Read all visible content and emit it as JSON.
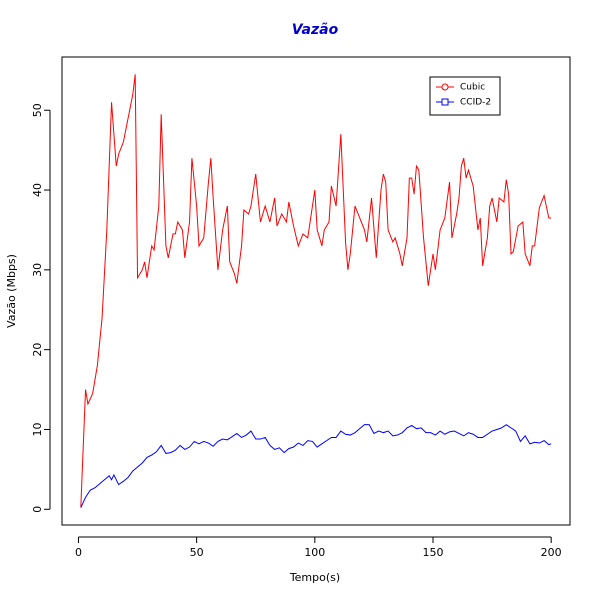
{
  "chart_data": {
    "type": "line",
    "title": "Vazão",
    "xlabel": "Tempo(s)",
    "ylabel": "Vazão (Mbps)",
    "xlim": [
      -6.96,
      207.96
    ],
    "ylim": [
      -1.97,
      56.67
    ],
    "xticks": [
      0,
      50,
      100,
      150,
      200
    ],
    "yticks": [
      0,
      10,
      20,
      30,
      40,
      50
    ],
    "grid": false,
    "legend": "top-right",
    "series": [
      {
        "name": "Cubic",
        "color": "#ff0000",
        "marker": "circle",
        "x": [
          1,
          3,
          4,
          6,
          8,
          10,
          12,
          14,
          16,
          17,
          19,
          21,
          23,
          24,
          25,
          27,
          28,
          29,
          31,
          32,
          34,
          35,
          37,
          38,
          40,
          41,
          42,
          44,
          45,
          47,
          48,
          50,
          51,
          53,
          55,
          56,
          57,
          59,
          61,
          63,
          64,
          66,
          67,
          69,
          70,
          72,
          73,
          75,
          77,
          79,
          81,
          83,
          84,
          86,
          88,
          89,
          91,
          93,
          95,
          97,
          98,
          100,
          101,
          103,
          104,
          106,
          107,
          109,
          111,
          113,
          114,
          115,
          117,
          119,
          121,
          122,
          124,
          126,
          128,
          129,
          130,
          131,
          133,
          134,
          136,
          137,
          139,
          140,
          141,
          142,
          143,
          144,
          146,
          148,
          150,
          151,
          153,
          155,
          157,
          158,
          160,
          161,
          162,
          163,
          164,
          165,
          167,
          169,
          170,
          171,
          173,
          174,
          175,
          177,
          178,
          180,
          181,
          182,
          183,
          184,
          186,
          188,
          189,
          191,
          192,
          193,
          195,
          197,
          199,
          200
        ],
        "values": [
          0.3,
          15,
          13.2,
          14.5,
          18,
          24,
          35,
          51,
          43,
          44.5,
          46,
          49,
          52,
          54.5,
          29,
          30,
          31,
          29,
          33,
          32.5,
          38,
          49.5,
          33,
          31.5,
          34.5,
          34.5,
          36,
          35,
          31.5,
          36,
          44,
          38,
          33,
          34,
          41,
          44,
          39,
          30,
          35,
          38,
          31,
          29.5,
          28.3,
          33,
          37.5,
          37,
          38,
          42,
          36,
          38,
          36,
          39,
          35.5,
          37,
          36,
          38.5,
          35.5,
          33,
          34.5,
          34,
          36,
          40,
          35,
          33,
          35,
          36,
          40.5,
          38,
          47,
          33.5,
          30,
          32,
          38,
          36.5,
          35,
          33.5,
          39,
          31.5,
          40,
          42,
          41,
          35,
          33.5,
          34,
          32,
          30.5,
          34,
          41.5,
          41.5,
          39.5,
          43,
          42.5,
          34,
          28,
          32,
          30,
          35,
          36.5,
          41,
          34,
          37,
          39,
          43,
          44,
          41.5,
          42.5,
          40.5,
          35,
          36.5,
          30.5,
          34,
          38,
          39,
          36,
          39,
          38.5,
          41.3,
          39.5,
          32,
          32.3,
          35.5,
          36,
          32,
          30.5,
          33,
          33,
          37.8,
          39.3,
          36.5,
          36.5
        ]
      },
      {
        "name": "CCID-2",
        "color": "#0000ff",
        "marker": "square",
        "x": [
          1,
          3,
          5,
          7,
          9,
          11,
          13,
          14,
          15,
          17,
          19,
          21,
          23,
          25,
          27,
          29,
          31,
          33,
          35,
          37,
          39,
          41,
          43,
          45,
          47,
          49,
          51,
          53,
          55,
          57,
          59,
          61,
          63,
          65,
          67,
          69,
          71,
          73,
          75,
          77,
          79,
          81,
          83,
          85,
          87,
          89,
          91,
          93,
          95,
          97,
          99,
          101,
          103,
          105,
          107,
          109,
          111,
          113,
          115,
          117,
          119,
          121,
          123,
          125,
          127,
          129,
          131,
          133,
          135,
          137,
          139,
          141,
          143,
          145,
          147,
          149,
          151,
          153,
          155,
          157,
          159,
          161,
          163,
          165,
          167,
          169,
          171,
          173,
          175,
          177,
          179,
          181,
          183,
          185,
          187,
          189,
          191,
          193,
          195,
          197,
          199,
          200
        ],
        "values": [
          0.2,
          1.5,
          2.4,
          2.7,
          3.2,
          3.7,
          4.2,
          3.7,
          4.3,
          3.1,
          3.5,
          4.0,
          4.8,
          5.3,
          5.8,
          6.5,
          6.8,
          7.2,
          8.0,
          7.0,
          7.1,
          7.4,
          8.0,
          7.5,
          7.8,
          8.5,
          8.2,
          8.5,
          8.3,
          7.9,
          8.5,
          8.8,
          8.7,
          9.1,
          9.5,
          9.0,
          9.3,
          9.8,
          8.8,
          8.8,
          9.0,
          8.0,
          7.5,
          7.7,
          7.1,
          7.6,
          7.8,
          8.3,
          8.0,
          8.6,
          8.5,
          7.8,
          8.2,
          8.6,
          9.0,
          9.0,
          9.8,
          9.4,
          9.3,
          9.6,
          10.1,
          10.6,
          10.6,
          9.5,
          9.8,
          9.6,
          9.8,
          9.2,
          9.3,
          9.6,
          10.2,
          10.5,
          10.1,
          10.2,
          9.6,
          9.6,
          9.3,
          9.8,
          9.4,
          9.7,
          9.8,
          9.5,
          9.2,
          9.6,
          9.4,
          9.0,
          9.0,
          9.4,
          9.8,
          10.0,
          10.2,
          10.6,
          10.2,
          9.8,
          8.5,
          9.2,
          8.2,
          8.4,
          8.3,
          8.6,
          8.1,
          8.2
        ]
      }
    ]
  }
}
